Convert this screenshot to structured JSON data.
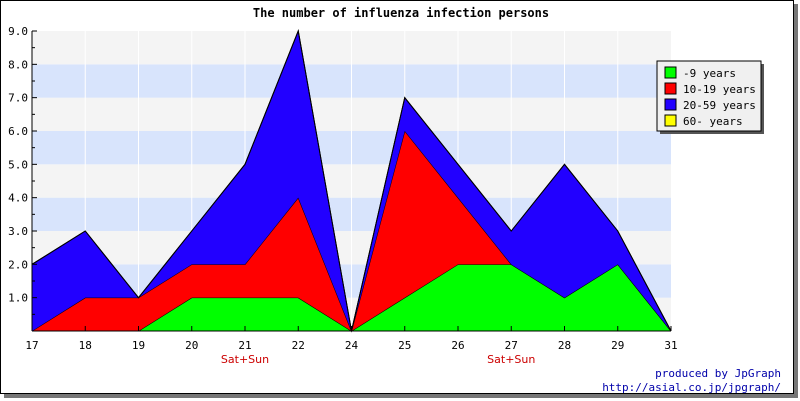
{
  "chart_data": {
    "type": "area",
    "stacked": true,
    "title": "The number of influenza infection persons",
    "x": [
      "17",
      "18",
      "19",
      "20",
      "21",
      "22",
      "24",
      "25",
      "26",
      "27",
      "28",
      "29",
      "31"
    ],
    "x_sublabels": [
      "",
      "",
      "",
      "",
      "Sat+Sun",
      "",
      "",
      "",
      "",
      "Sat+Sun",
      "",
      "",
      ""
    ],
    "ylim": [
      0,
      9
    ],
    "yticks": [
      "1.0",
      "2.0",
      "3.0",
      "4.0",
      "5.0",
      "6.0",
      "7.0",
      "8.0",
      "9.0"
    ],
    "grid": true,
    "legend_position": "top-right",
    "series": [
      {
        "name": "-9 years",
        "color": "#00ff00",
        "values": [
          0,
          0,
          0,
          1,
          1,
          1,
          0,
          1,
          2,
          2,
          1,
          2,
          0
        ]
      },
      {
        "name": "10-19 years",
        "color": "#ff0000",
        "values": [
          0,
          1,
          1,
          1,
          1,
          3,
          0,
          5,
          2,
          0,
          0,
          0,
          0
        ]
      },
      {
        "name": "20-59 years",
        "color": "#2200ff",
        "values": [
          2,
          2,
          0,
          1,
          3,
          5,
          0,
          1,
          1,
          1,
          4,
          1,
          0
        ]
      },
      {
        "name": "60- years",
        "color": "#ffff00",
        "values": [
          0,
          0,
          0,
          0,
          0,
          0,
          0,
          0,
          0,
          0,
          0,
          0,
          0
        ]
      }
    ]
  },
  "credits": {
    "line1": "produced by JpGraph",
    "line2": "http://asial.co.jp/jpgraph/"
  }
}
